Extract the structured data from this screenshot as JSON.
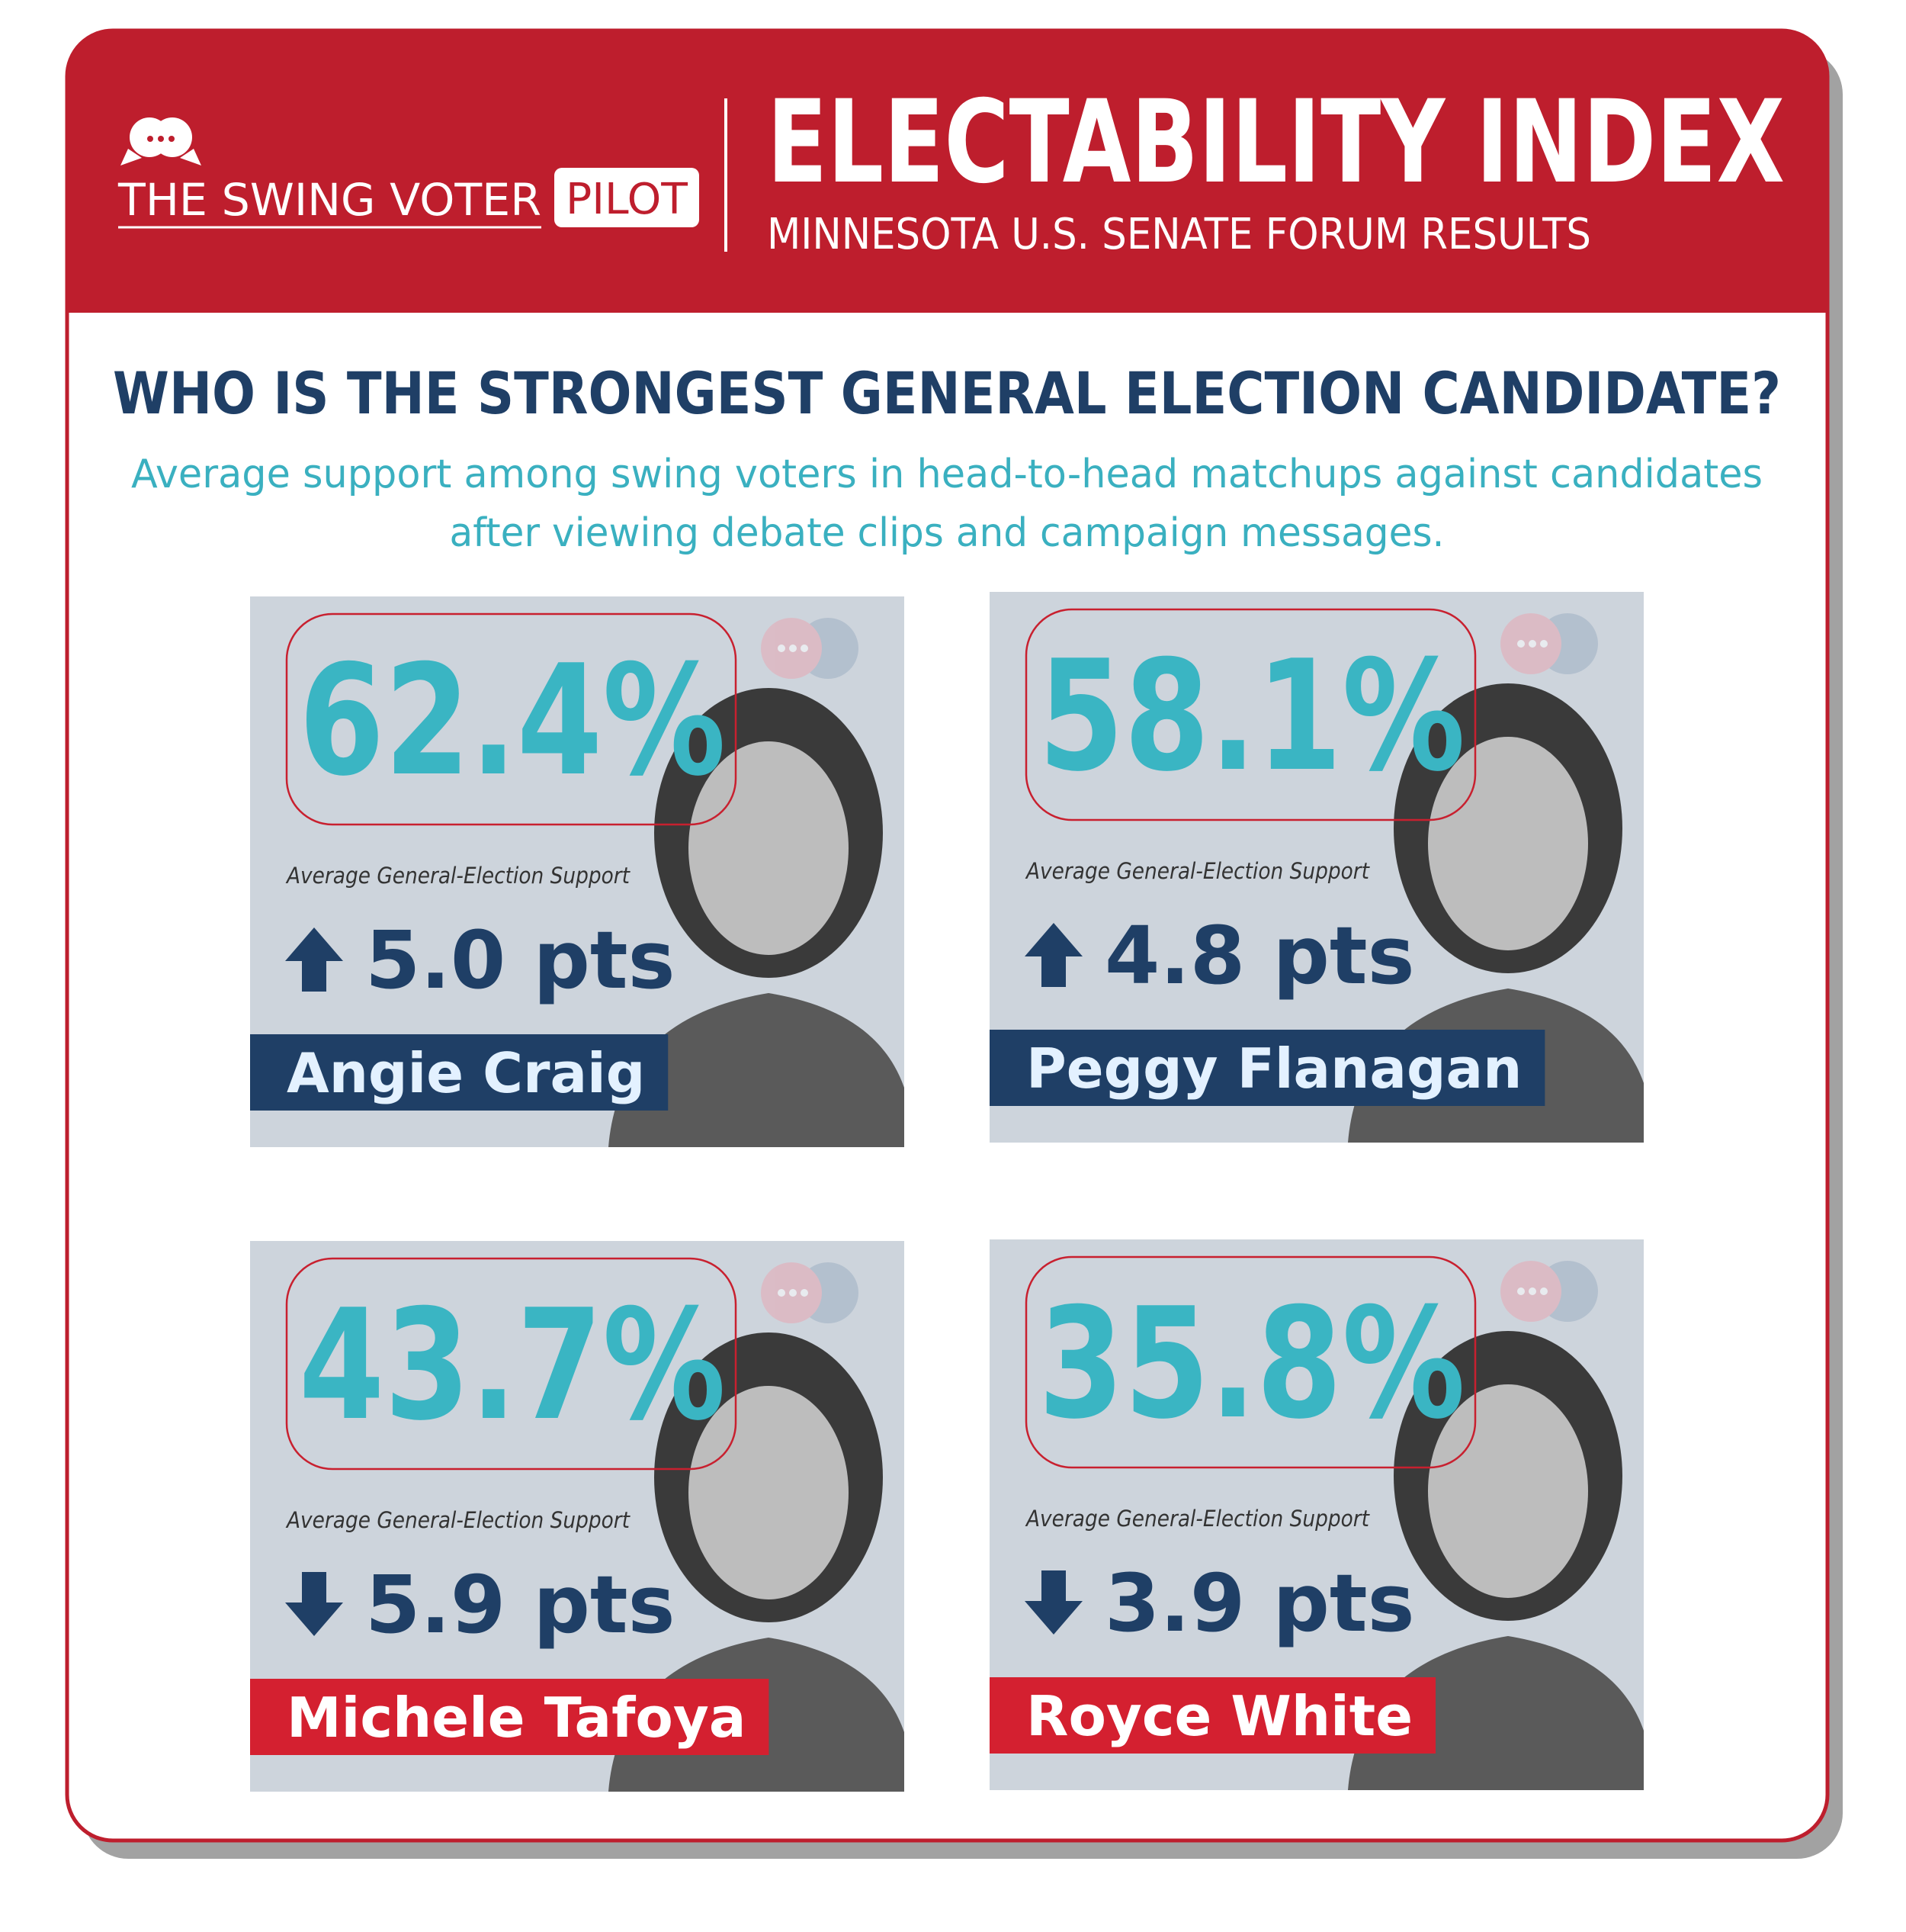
{
  "header": {
    "brand": "THE SWING VOTER",
    "brand_tag": "PILOT",
    "title": "ELECTABILITY INDEX",
    "subtitle": "MINNESOTA U.S. SENATE FORUM RESULTS"
  },
  "question": "WHO IS THE STRONGEST GENERAL ELECTION CANDIDATE?",
  "description": [
    "Average support among swing voters in head-to-head matchups against candidates",
    "after viewing debate clips and campaign messages."
  ],
  "cards": [
    {
      "percent": "62.4%",
      "label": "Average General-Election Support",
      "change": "5.0 pts",
      "direction": "up",
      "name": "Angie Craig",
      "name_color": "#1f3f66",
      "name_text_color": "#e3f1ff"
    },
    {
      "percent": "58.1%",
      "label": "Average General-Election Support",
      "change": "4.8 pts",
      "direction": "up",
      "name": "Peggy Flanagan",
      "name_color": "#1f3f66",
      "name_text_color": "#e3f1ff"
    },
    {
      "percent": "43.7%",
      "label": "Average General-Election Support",
      "change": "5.9 pts",
      "direction": "down",
      "name": "Michele Tafoya",
      "name_color": "#d42030",
      "name_text_color": "#ffffff"
    },
    {
      "percent": "35.8%",
      "label": "Average General-Election Support",
      "change": "3.9 pts",
      "direction": "down",
      "name": "Royce White",
      "name_color": "#d42030",
      "name_text_color": "#ffffff"
    }
  ]
}
